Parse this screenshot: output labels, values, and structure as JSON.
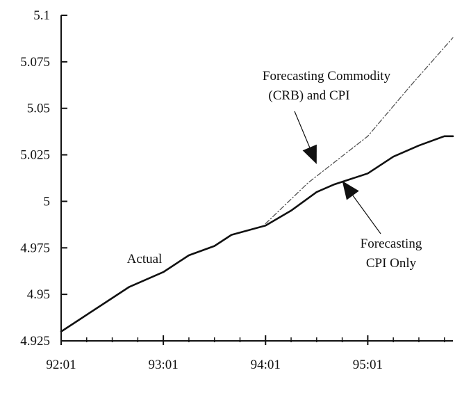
{
  "chart_data": {
    "type": "line",
    "title": "",
    "xlabel": "",
    "ylabel": "",
    "ylim": [
      4.925,
      5.1
    ],
    "xlim": [
      "92:01",
      "95:11"
    ],
    "x_ticks": [
      "92:01",
      "93:01",
      "94:01",
      "95:01"
    ],
    "y_ticks": [
      {
        "value": 4.925,
        "label": "4.925"
      },
      {
        "value": 4.95,
        "label": "4.95"
      },
      {
        "value": 4.975,
        "label": "4.975"
      },
      {
        "value": 5,
        "label": "5"
      },
      {
        "value": 5.025,
        "label": "5.025"
      },
      {
        "value": 5.05,
        "label": "5.05"
      },
      {
        "value": 5.075,
        "label": "5.075"
      },
      {
        "value": 5.1,
        "label": "5.1"
      }
    ],
    "grid": false,
    "legend": "none",
    "series": [
      {
        "style": "solid",
        "color": "#111111",
        "x": [
          "92:01",
          "92:03",
          "92:06",
          "92:09",
          "93:01",
          "93:04",
          "93:07",
          "93:09",
          "94:01",
          "94:04",
          "94:07",
          "94:09",
          "95:01",
          "95:04",
          "95:07",
          "95:10",
          "95:11"
        ],
        "y": [
          4.93,
          4.936,
          4.945,
          4.954,
          4.962,
          4.971,
          4.976,
          4.982,
          4.987,
          4.995,
          5.005,
          5.009,
          5.015,
          5.024,
          5.03,
          5.035,
          5.035
        ]
      },
      {
        "style": "dashed",
        "color": "#555555",
        "x": [
          "94:01",
          "94:06",
          "95:01",
          "95:06",
          "95:11"
        ],
        "y": [
          4.988,
          5.01,
          5.035,
          5.062,
          5.088
        ]
      }
    ],
    "annotations": [
      {
        "id": "crb",
        "lines": [
          "Forecasting Commodity",
          "(CRB) and CPI"
        ],
        "pointer_to": {
          "x": "94:07",
          "y": 5.02
        }
      },
      {
        "id": "cpi",
        "lines": [
          "Forecasting",
          "CPI Only"
        ],
        "pointer_to": {
          "x": "94:10",
          "y": 5.011
        }
      },
      {
        "id": "actual",
        "lines": [
          "Actual"
        ]
      }
    ]
  }
}
